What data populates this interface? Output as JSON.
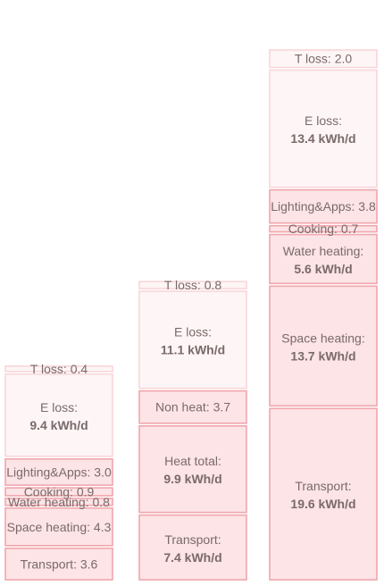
{
  "chart_data": {
    "type": "stacked-blocks",
    "unit": "kWh/d",
    "colors": {
      "fill": "#fde4e6",
      "fill_light": "#fef5f6",
      "stroke": "#f0a6ad",
      "stroke_light": "#f8d6d9",
      "text": "#7a6a6a"
    },
    "columns": [
      {
        "blocks": [
          {
            "name": "Transport",
            "value": 3.6,
            "label": "Transport: 3.6"
          },
          {
            "name": "Space heating",
            "value": 4.3,
            "label": "Space heating: 4.3"
          },
          {
            "name": "Water heating",
            "value": 0.8,
            "label": "Water heating: 0.8"
          },
          {
            "name": "Cooking",
            "value": 0.9,
            "label": "Cooking: 0.9"
          },
          {
            "name": "Lighting&Apps",
            "value": 3.0,
            "label": "Lighting&Apps: 3.0"
          },
          {
            "name": "E loss",
            "value": 9.4,
            "label": "E loss:",
            "value_label": "9.4 kWh/d",
            "light": true
          },
          {
            "name": "T loss",
            "value": 0.4,
            "label": "T loss: 0.4",
            "light": true
          }
        ]
      },
      {
        "blocks": [
          {
            "name": "Transport",
            "value": 7.4,
            "label": "Transport:",
            "value_label": "7.4 kWh/d"
          },
          {
            "name": "Heat total",
            "value": 9.9,
            "label": "Heat total:",
            "value_label": "9.9 kWh/d"
          },
          {
            "name": "Non heat",
            "value": 3.7,
            "label": "Non heat: 3.7"
          },
          {
            "name": "E loss",
            "value": 11.1,
            "label": "E loss:",
            "value_label": "11.1 kWh/d",
            "light": true
          },
          {
            "name": "T loss",
            "value": 0.8,
            "label": "T loss: 0.8",
            "light": true
          }
        ]
      },
      {
        "blocks": [
          {
            "name": "Transport",
            "value": 19.6,
            "label": "Transport:",
            "value_label": "19.6 kWh/d"
          },
          {
            "name": "Space heating",
            "value": 13.7,
            "label": "Space heating:",
            "value_label": "13.7 kWh/d"
          },
          {
            "name": "Water heating",
            "value": 5.6,
            "label": "Water heating:",
            "value_label": "5.6 kWh/d"
          },
          {
            "name": "Cooking",
            "value": 0.7,
            "label": "Cooking: 0.7"
          },
          {
            "name": "Lighting&Apps",
            "value": 3.8,
            "label": "Lighting&Apps: 3.8"
          },
          {
            "name": "E loss",
            "value": 13.4,
            "label": "E loss:",
            "value_label": "13.4 kWh/d",
            "light": true
          },
          {
            "name": "T loss",
            "value": 2.0,
            "label": "T loss: 2.0",
            "light": true
          }
        ]
      }
    ]
  }
}
